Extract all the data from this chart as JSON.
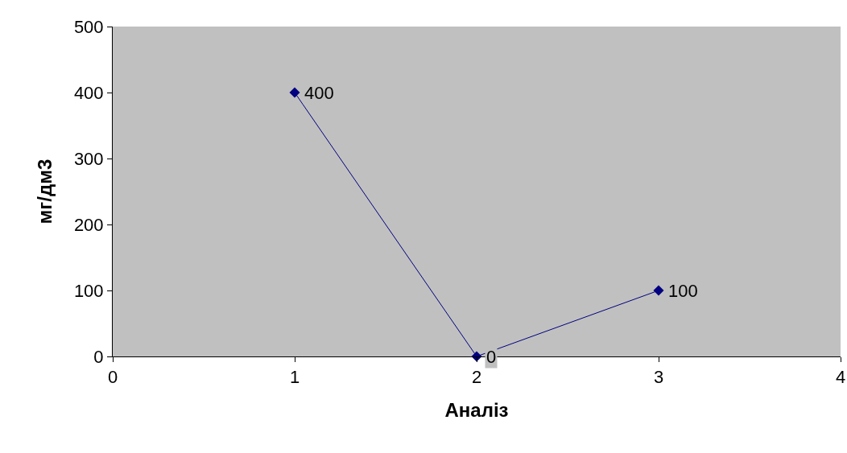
{
  "chart_data": {
    "type": "line",
    "xlabel": "Аналіз",
    "ylabel": "мг/дм3",
    "x": [
      1,
      2,
      3
    ],
    "series": [
      {
        "color": "#000080",
        "values": [
          400,
          0,
          100
        ]
      }
    ],
    "xlim": [
      0,
      4
    ],
    "xticks": [
      0,
      1,
      2,
      3,
      4
    ],
    "ylim": [
      0,
      500
    ],
    "yticks": [
      0,
      100,
      200,
      300,
      400,
      500
    ],
    "marker": "diamond",
    "line_style": "solid",
    "data_labels": true
  }
}
